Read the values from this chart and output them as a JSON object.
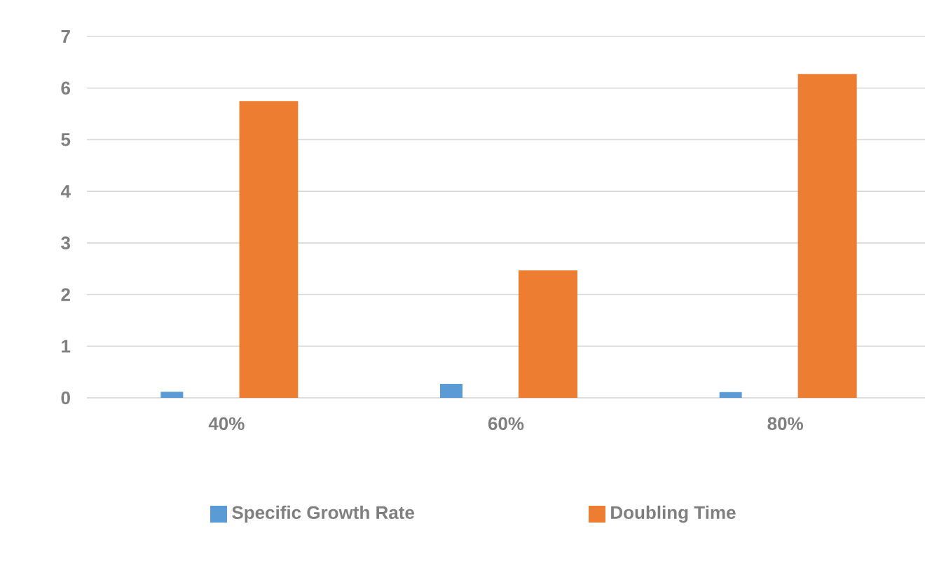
{
  "chart_data": {
    "type": "bar",
    "categories": [
      "40%",
      "60%",
      "80%"
    ],
    "series": [
      {
        "name": "Specific Growth Rate",
        "color": "#5b9bd5",
        "values": [
          0.12,
          0.27,
          0.11
        ]
      },
      {
        "name": "Doubling Time",
        "color": "#ed7d31",
        "values": [
          5.75,
          2.47,
          6.27
        ]
      }
    ],
    "ylim": [
      0,
      7
    ],
    "yticks": [
      0,
      1,
      2,
      3,
      4,
      5,
      6,
      7
    ],
    "grid": "y",
    "legend": "bottom"
  }
}
